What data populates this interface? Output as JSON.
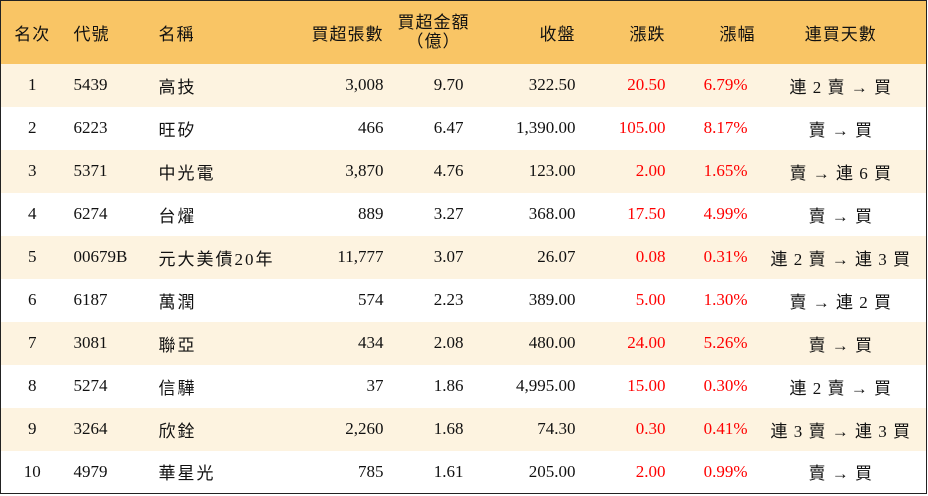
{
  "table": {
    "headers": {
      "rank": "名次",
      "code": "代號",
      "name": "名稱",
      "lots": "買超張數",
      "amount": "買超金額\n（億）",
      "close": "收盤",
      "change": "漲跌",
      "pct": "漲幅",
      "streak": "連買天數"
    },
    "rows": [
      {
        "rank": "1",
        "code": "5439",
        "name": "高技",
        "lots": "3,008",
        "amount": "9.70",
        "close": "322.50",
        "change": "20.50",
        "pct": "6.79%",
        "streak": "連 2 賣 → 買"
      },
      {
        "rank": "2",
        "code": "6223",
        "name": "旺矽",
        "lots": "466",
        "amount": "6.47",
        "close": "1,390.00",
        "change": "105.00",
        "pct": "8.17%",
        "streak": "賣 → 買"
      },
      {
        "rank": "3",
        "code": "5371",
        "name": "中光電",
        "lots": "3,870",
        "amount": "4.76",
        "close": "123.00",
        "change": "2.00",
        "pct": "1.65%",
        "streak": "賣 → 連 6 買"
      },
      {
        "rank": "4",
        "code": "6274",
        "name": "台燿",
        "lots": "889",
        "amount": "3.27",
        "close": "368.00",
        "change": "17.50",
        "pct": "4.99%",
        "streak": "賣 → 買"
      },
      {
        "rank": "5",
        "code": "00679B",
        "name": "元大美債20年",
        "lots": "11,777",
        "amount": "3.07",
        "close": "26.07",
        "change": "0.08",
        "pct": "0.31%",
        "streak": "連 2 賣 → 連 3 買"
      },
      {
        "rank": "6",
        "code": "6187",
        "name": "萬潤",
        "lots": "574",
        "amount": "2.23",
        "close": "389.00",
        "change": "5.00",
        "pct": "1.30%",
        "streak": "賣 → 連 2 買"
      },
      {
        "rank": "7",
        "code": "3081",
        "name": "聯亞",
        "lots": "434",
        "amount": "2.08",
        "close": "480.00",
        "change": "24.00",
        "pct": "5.26%",
        "streak": "賣 → 買"
      },
      {
        "rank": "8",
        "code": "5274",
        "name": "信驊",
        "lots": "37",
        "amount": "1.86",
        "close": "4,995.00",
        "change": "15.00",
        "pct": "0.30%",
        "streak": "連 2 賣 → 買"
      },
      {
        "rank": "9",
        "code": "3264",
        "name": "欣銓",
        "lots": "2,260",
        "amount": "1.68",
        "close": "74.30",
        "change": "0.30",
        "pct": "0.41%",
        "streak": "連 3 賣 → 連 3 買"
      },
      {
        "rank": "10",
        "code": "4979",
        "name": "華星光",
        "lots": "785",
        "amount": "1.61",
        "close": "205.00",
        "change": "2.00",
        "pct": "0.99%",
        "streak": "賣 → 買"
      }
    ]
  },
  "colors": {
    "header_bg": "#f9c565",
    "odd_row_bg": "#fdf3e0",
    "even_row_bg": "#ffffff",
    "up": "#ff0000",
    "text": "#111111"
  }
}
